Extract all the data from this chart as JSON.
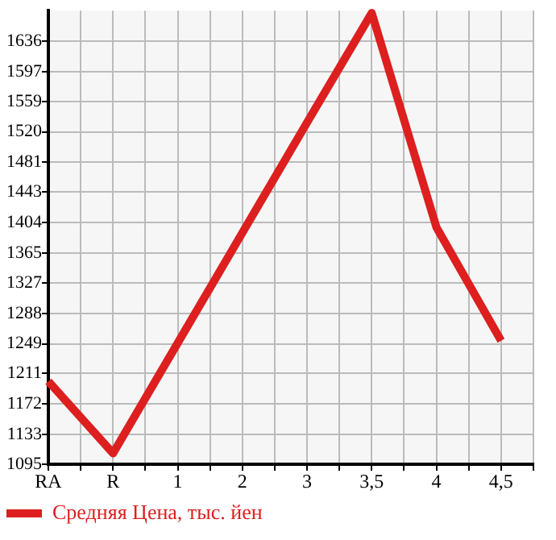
{
  "chart_data": {
    "type": "line",
    "categories": [
      "RA",
      "R",
      "1",
      "2",
      "3",
      "3,5",
      "4",
      "4,5"
    ],
    "series": [
      {
        "name": "Средняя Цена, тыс. йен",
        "color": "#dd1f1f",
        "values": [
          1201,
          1109,
          1250,
          1391,
          1532,
          1672,
          1398,
          1253
        ]
      }
    ],
    "ylim": [
      1095,
      1675
    ],
    "yticks": [
      1095,
      1133,
      1172,
      1211,
      1249,
      1288,
      1327,
      1365,
      1404,
      1443,
      1481,
      1520,
      1559,
      1597,
      1636
    ],
    "grid": true,
    "legend": "bottom",
    "marker": "none",
    "line_style": "solid"
  }
}
